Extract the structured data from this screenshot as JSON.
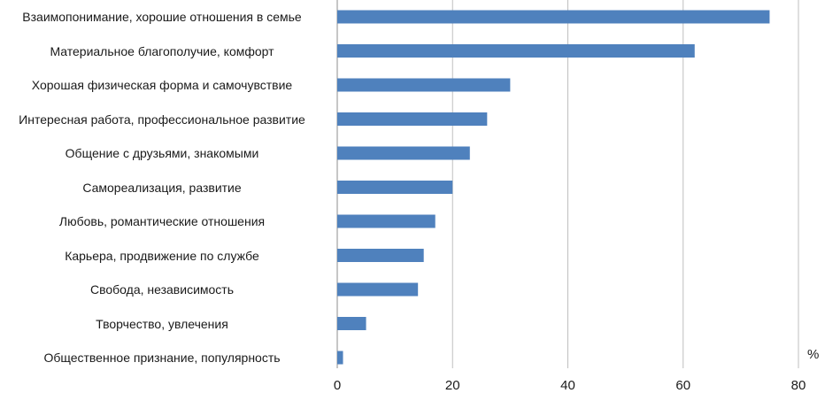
{
  "chart_data": {
    "type": "bar",
    "orientation": "horizontal",
    "categories": [
      "Взаимопонимание, хорошие отношения в семье",
      "Материальное благополучие, комфорт",
      "Хорошая физическая форма и самочувствие",
      "Интересная работа, профессиональное развитие",
      "Общение с друзьями, знакомыми",
      "Самореализация, развитие",
      "Любовь, романтические отношения",
      "Карьера, продвижение по службе",
      "Свобода, независимость",
      "Творчество, увлечения",
      "Общественное признание, популярность"
    ],
    "values": [
      75,
      62,
      30,
      26,
      23,
      20,
      17,
      15,
      14,
      5,
      1
    ],
    "xlim": [
      0,
      80
    ],
    "xticks": [
      "0",
      "20",
      "40",
      "60",
      "80"
    ],
    "unit_label": "%",
    "bar_color": "#4f81bd",
    "grid": true
  }
}
